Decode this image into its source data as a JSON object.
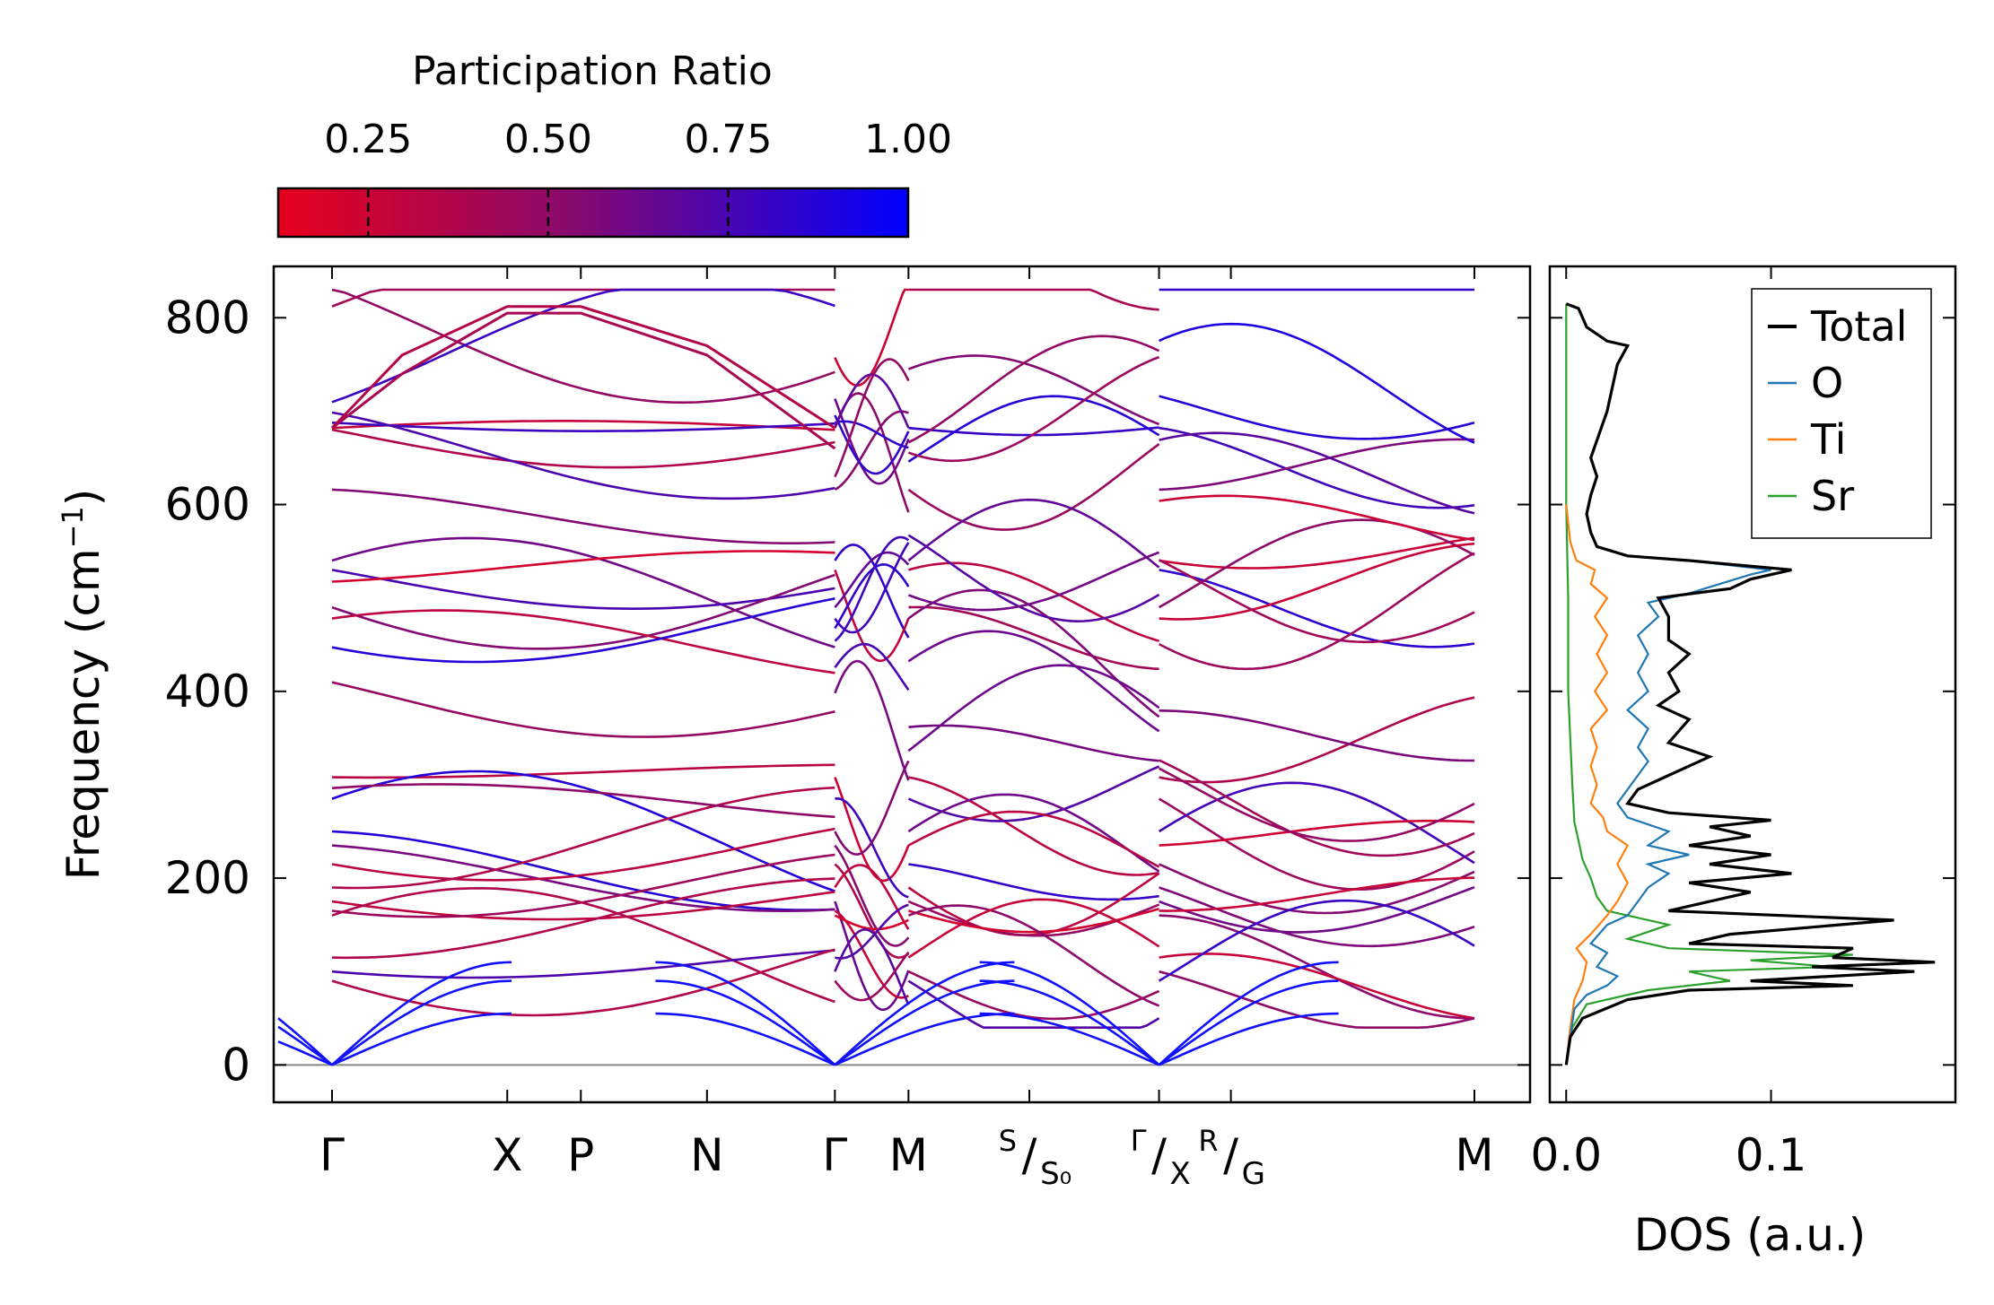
{
  "chart_data": [
    {
      "type": "band-structure",
      "ylabel": "Frequency (cm",
      "ylabel_sup": "−1",
      "ylabel_close": ")",
      "ylim": [
        -40,
        855
      ],
      "yticks": [
        0,
        200,
        400,
        600,
        800
      ],
      "path": {
        "points": [
          0,
          1.0,
          1.42,
          2.14,
          2.87,
          3.29,
          3.98,
          4.72,
          5.13,
          6.52
        ],
        "labels": [
          {
            "pos": 0,
            "main": "Γ",
            "sub": ""
          },
          {
            "pos": 1.0,
            "main": "X",
            "sub": ""
          },
          {
            "pos": 1.42,
            "main": "P",
            "sub": ""
          },
          {
            "pos": 2.14,
            "main": "N",
            "sub": ""
          },
          {
            "pos": 2.87,
            "main": "Γ",
            "sub": ""
          },
          {
            "pos": 3.29,
            "main": "M",
            "sub": ""
          },
          {
            "pos": 3.98,
            "main": "S",
            "sub": "S₀",
            "split": true
          },
          {
            "pos": 4.72,
            "main": "Γ",
            "sub": "X",
            "split": true
          },
          {
            "pos": 5.13,
            "main": "R",
            "sub": "G",
            "split": true
          },
          {
            "pos": 6.52,
            "main": "M",
            "sub": ""
          }
        ],
        "segments": [
          [
            0,
            2.87
          ],
          [
            2.87,
            3.29
          ],
          [
            3.29,
            4.72
          ],
          [
            4.72,
            6.52
          ]
        ]
      },
      "acoustic_branches_at": [
        0,
        2.87,
        4.72
      ],
      "colorbar": {
        "title": "Participation Ratio",
        "ticks": [
          0.25,
          0.5,
          0.75,
          1.0
        ],
        "tick_labels": [
          "0.25",
          "0.50",
          "0.75",
          "1.00"
        ],
        "range": [
          0.125,
          1.0
        ],
        "colors": [
          "#e8001c",
          "#0000ff"
        ]
      },
      "approx_band_energies": {
        "optical_top_segment_1": [
          682,
          812,
          812,
          766,
          682
        ],
        "optical_high_branches_gamma": [
          682,
          616,
          540,
          530,
          490,
          478
        ],
        "mid_branches_gamma": [
          308,
          285,
          250,
          235,
          215,
          190,
          175,
          165,
          115,
          100,
          90
        ]
      }
    },
    {
      "type": "line",
      "xlabel": "DOS (a.u.)",
      "xlim": [
        -0.008,
        0.19
      ],
      "xticks": [
        0.0,
        0.1
      ],
      "xtick_labels": [
        "0.0",
        "0.1"
      ],
      "ylim": [
        -40,
        855
      ],
      "legend": {
        "placement": "top-right",
        "entries": [
          "Total",
          "O",
          "Ti",
          "Sr"
        ]
      },
      "series": [
        {
          "name": "Total",
          "color": "#000000",
          "points": [
            [
              0.0,
              0
            ],
            [
              0.002,
              30
            ],
            [
              0.008,
              50
            ],
            [
              0.03,
              70
            ],
            [
              0.06,
              80
            ],
            [
              0.14,
              85
            ],
            [
              0.09,
              90
            ],
            [
              0.17,
              100
            ],
            [
              0.12,
              105
            ],
            [
              0.18,
              110
            ],
            [
              0.13,
              115
            ],
            [
              0.14,
              125
            ],
            [
              0.06,
              130
            ],
            [
              0.08,
              140
            ],
            [
              0.16,
              155
            ],
            [
              0.05,
              165
            ],
            [
              0.07,
              175
            ],
            [
              0.09,
              185
            ],
            [
              0.06,
              195
            ],
            [
              0.11,
              205
            ],
            [
              0.07,
              215
            ],
            [
              0.1,
              225
            ],
            [
              0.06,
              235
            ],
            [
              0.09,
              245
            ],
            [
              0.07,
              255
            ],
            [
              0.1,
              262
            ],
            [
              0.05,
              270
            ],
            [
              0.03,
              280
            ],
            [
              0.035,
              295
            ],
            [
              0.05,
              310
            ],
            [
              0.07,
              330
            ],
            [
              0.05,
              345
            ],
            [
              0.06,
              370
            ],
            [
              0.045,
              385
            ],
            [
              0.055,
              400
            ],
            [
              0.05,
              420
            ],
            [
              0.06,
              440
            ],
            [
              0.05,
              455
            ],
            [
              0.05,
              480
            ],
            [
              0.045,
              500
            ],
            [
              0.08,
              510
            ],
            [
              0.09,
              520
            ],
            [
              0.11,
              530
            ],
            [
              0.06,
              540
            ],
            [
              0.03,
              545
            ],
            [
              0.015,
              555
            ],
            [
              0.012,
              570
            ],
            [
              0.01,
              590
            ],
            [
              0.012,
              610
            ],
            [
              0.015,
              630
            ],
            [
              0.012,
              650
            ],
            [
              0.02,
              700
            ],
            [
              0.025,
              750
            ],
            [
              0.03,
              770
            ],
            [
              0.02,
              775
            ],
            [
              0.01,
              790
            ],
            [
              0.006,
              810
            ],
            [
              0.0,
              815
            ]
          ]
        },
        {
          "name": "O",
          "color": "#1f77b4",
          "points": [
            [
              0.0,
              0
            ],
            [
              0.002,
              30
            ],
            [
              0.004,
              60
            ],
            [
              0.01,
              75
            ],
            [
              0.02,
              85
            ],
            [
              0.025,
              95
            ],
            [
              0.015,
              105
            ],
            [
              0.02,
              120
            ],
            [
              0.012,
              130
            ],
            [
              0.02,
              150
            ],
            [
              0.03,
              160
            ],
            [
              0.035,
              175
            ],
            [
              0.04,
              190
            ],
            [
              0.05,
              205
            ],
            [
              0.04,
              215
            ],
            [
              0.06,
              225
            ],
            [
              0.04,
              235
            ],
            [
              0.05,
              250
            ],
            [
              0.03,
              265
            ],
            [
              0.025,
              280
            ],
            [
              0.03,
              295
            ],
            [
              0.035,
              310
            ],
            [
              0.04,
              325
            ],
            [
              0.035,
              340
            ],
            [
              0.04,
              360
            ],
            [
              0.03,
              380
            ],
            [
              0.04,
              400
            ],
            [
              0.035,
              420
            ],
            [
              0.04,
              440
            ],
            [
              0.035,
              460
            ],
            [
              0.045,
              480
            ],
            [
              0.04,
              495
            ],
            [
              0.06,
              505
            ],
            [
              0.075,
              515
            ],
            [
              0.09,
              525
            ],
            [
              0.1,
              530
            ],
            [
              0.06,
              540
            ],
            [
              0.03,
              545
            ],
            [
              0.015,
              555
            ],
            [
              0.012,
              570
            ],
            [
              0.01,
              590
            ],
            [
              0.012,
              610
            ],
            [
              0.015,
              630
            ],
            [
              0.012,
              650
            ],
            [
              0.02,
              700
            ],
            [
              0.025,
              750
            ],
            [
              0.03,
              770
            ],
            [
              0.02,
              775
            ],
            [
              0.01,
              790
            ],
            [
              0.006,
              810
            ],
            [
              0.0,
              815
            ]
          ]
        },
        {
          "name": "Ti",
          "color": "#ff7f0e",
          "points": [
            [
              0.0,
              0
            ],
            [
              0.002,
              40
            ],
            [
              0.004,
              70
            ],
            [
              0.008,
              90
            ],
            [
              0.01,
              110
            ],
            [
              0.005,
              125
            ],
            [
              0.012,
              140
            ],
            [
              0.02,
              160
            ],
            [
              0.025,
              175
            ],
            [
              0.03,
              195
            ],
            [
              0.025,
              215
            ],
            [
              0.03,
              235
            ],
            [
              0.02,
              250
            ],
            [
              0.018,
              265
            ],
            [
              0.012,
              280
            ],
            [
              0.015,
              300
            ],
            [
              0.012,
              320
            ],
            [
              0.015,
              340
            ],
            [
              0.012,
              360
            ],
            [
              0.02,
              380
            ],
            [
              0.014,
              400
            ],
            [
              0.02,
              420
            ],
            [
              0.015,
              440
            ],
            [
              0.02,
              460
            ],
            [
              0.014,
              480
            ],
            [
              0.02,
              500
            ],
            [
              0.012,
              515
            ],
            [
              0.014,
              530
            ],
            [
              0.005,
              540
            ],
            [
              0.002,
              560
            ],
            [
              0.0,
              600
            ]
          ]
        },
        {
          "name": "Sr",
          "color": "#2ca02c",
          "points": [
            [
              0.0,
              0
            ],
            [
              0.003,
              40
            ],
            [
              0.01,
              65
            ],
            [
              0.04,
              80
            ],
            [
              0.08,
              90
            ],
            [
              0.06,
              100
            ],
            [
              0.13,
              105
            ],
            [
              0.09,
              112
            ],
            [
              0.14,
              118
            ],
            [
              0.05,
              125
            ],
            [
              0.03,
              135
            ],
            [
              0.05,
              150
            ],
            [
              0.02,
              165
            ],
            [
              0.015,
              180
            ],
            [
              0.012,
              200
            ],
            [
              0.008,
              220
            ],
            [
              0.006,
              240
            ],
            [
              0.004,
              260
            ],
            [
              0.003,
              300
            ],
            [
              0.002,
              350
            ],
            [
              0.001,
              400
            ],
            [
              0.001,
              500
            ],
            [
              0.0,
              600
            ],
            [
              0.0,
              815
            ]
          ]
        }
      ]
    }
  ]
}
